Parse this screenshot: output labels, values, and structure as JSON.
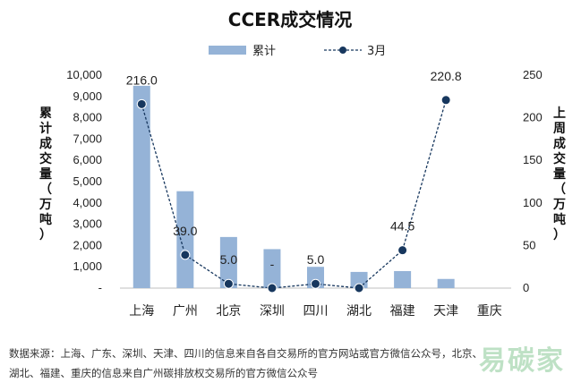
{
  "chart_data": {
    "type": "bar",
    "title": "CCER成交情况",
    "categories": [
      "上海",
      "广州",
      "北京",
      "深圳",
      "四川",
      "湖北",
      "福建",
      "天津",
      "重庆"
    ],
    "series": [
      {
        "name": "累计",
        "chart": "bar",
        "axis": "left",
        "color": "#95b3d7",
        "values": [
          9500,
          4550,
          2400,
          1830,
          1000,
          760,
          800,
          430,
          0
        ]
      },
      {
        "name": "3月",
        "chart": "line",
        "axis": "right",
        "color": "#17375e",
        "values": [
          216.0,
          39.0,
          5.0,
          0,
          5.0,
          0,
          44.5,
          220.8,
          null
        ]
      }
    ],
    "data_labels": [
      "216.0",
      "39.0",
      "5.0",
      "-",
      "5.0",
      "",
      "44.5",
      "220.8",
      ""
    ],
    "ylabel": "累计成交量（万吨）",
    "y2label": "上周成交量（万吨）",
    "ylim": [
      0,
      10000
    ],
    "y2lim": [
      0,
      250
    ],
    "yticks": [
      "-",
      "1,000",
      "2,000",
      "3,000",
      "4,000",
      "5,000",
      "6,000",
      "7,000",
      "8,000",
      "9,000",
      "10,000"
    ],
    "y2ticks": [
      "0",
      "50",
      "100",
      "150",
      "200",
      "250"
    ],
    "legend_position": "top"
  },
  "source_line1": "数据来源：上海、广东、深圳、天津、四川的信息来自各自交易所的官方网站或官方微信公众号，北京、",
  "source_line2": "湖北、福建、重庆的信息来自广州碳排放权交易所的官方微信公众号",
  "watermark": "易碳家"
}
